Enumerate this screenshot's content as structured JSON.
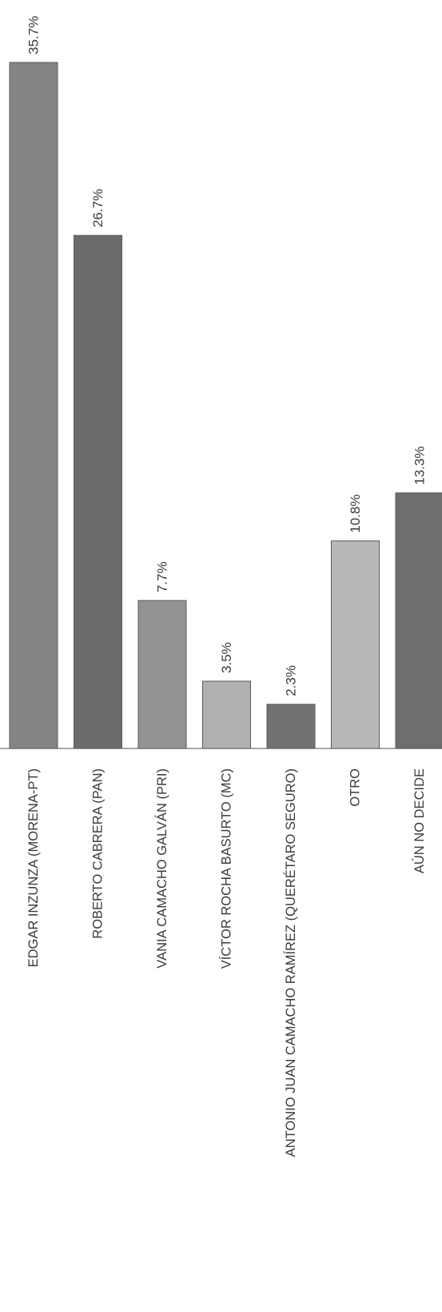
{
  "chart_data": {
    "type": "bar",
    "orientation": "vertical",
    "rotated_image": true,
    "categories": [
      "EDGAR INZUNZA (MORENA-PT)",
      "ROBERTO CABRERA (PAN)",
      "VANIA CAMACHO GALVÁN (PRI)",
      "VÍCTOR ROCHA BASURTO (MC)",
      "ANTONIO JUAN CAMACHO RAMÍREZ (QUERÉTARO SEGURO)",
      "OTRO",
      "AÚN NO DECIDE"
    ],
    "values": [
      35.7,
      26.7,
      7.7,
      3.5,
      2.3,
      10.8,
      13.3
    ],
    "value_labels": [
      "35.7%",
      "26.7%",
      "7.7%",
      "3.5%",
      "2.3%",
      "10.8%",
      "13.3%"
    ],
    "bar_colors": [
      "#858585",
      "#6b6b6b",
      "#939393",
      "#b0b0b0",
      "#727272",
      "#b8b8b8",
      "#6e6e6e"
    ],
    "title": "",
    "xlabel": "",
    "ylabel": "",
    "ylim": [
      0,
      35.7
    ],
    "grid": false,
    "legend": "none"
  }
}
